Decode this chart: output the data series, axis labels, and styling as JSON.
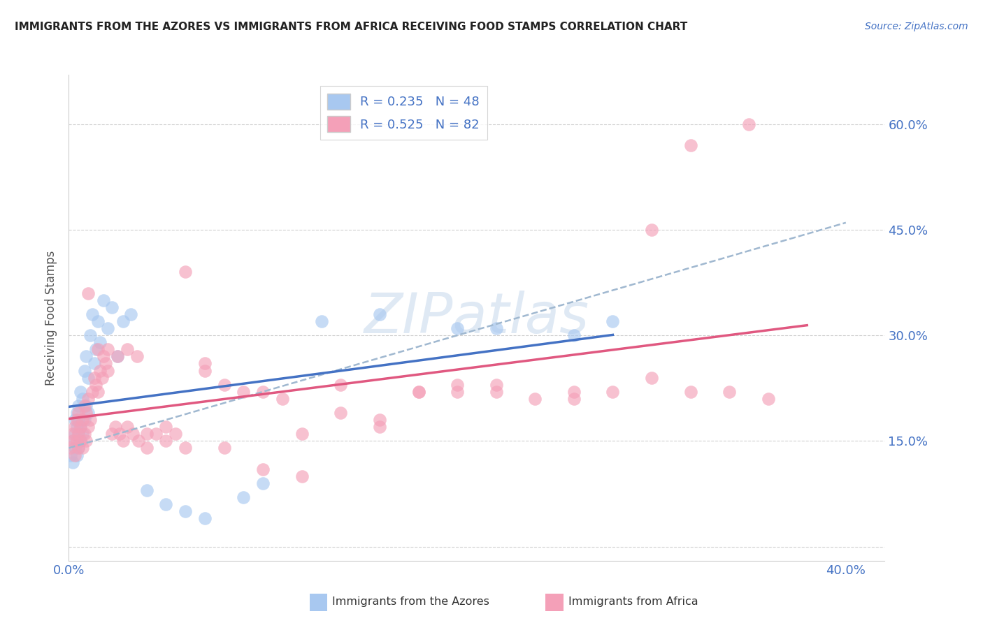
{
  "title": "IMMIGRANTS FROM THE AZORES VS IMMIGRANTS FROM AFRICA RECEIVING FOOD STAMPS CORRELATION CHART",
  "source": "Source: ZipAtlas.com",
  "ylabel": "Receiving Food Stamps",
  "xlim": [
    0.0,
    0.42
  ],
  "ylim": [
    -0.02,
    0.67
  ],
  "ytick_positions": [
    0.0,
    0.15,
    0.3,
    0.45,
    0.6
  ],
  "ytick_labels": [
    "",
    "15.0%",
    "30.0%",
    "45.0%",
    "60.0%"
  ],
  "xtick_positions": [
    0.0,
    0.4
  ],
  "xtick_labels": [
    "0.0%",
    "40.0%"
  ],
  "grid_color": "#d0d0d0",
  "background_color": "#ffffff",
  "watermark": "ZIPatlas",
  "legend_label_azores": "R = 0.235   N = 48",
  "legend_label_africa": "R = 0.525   N = 82",
  "azores_color": "#a8c8f0",
  "africa_color": "#f4a0b8",
  "azores_line_color": "#4472c4",
  "africa_line_color": "#e05880",
  "dashed_line_color": "#a0b8d0",
  "bottom_legend_azores": "Immigrants from the Azores",
  "bottom_legend_africa": "Immigrants from Africa",
  "az_x": [
    0.001,
    0.002,
    0.002,
    0.003,
    0.003,
    0.003,
    0.004,
    0.004,
    0.004,
    0.005,
    0.005,
    0.005,
    0.005,
    0.006,
    0.006,
    0.006,
    0.007,
    0.007,
    0.008,
    0.008,
    0.009,
    0.009,
    0.01,
    0.01,
    0.011,
    0.012,
    0.013,
    0.014,
    0.015,
    0.016,
    0.018,
    0.02,
    0.022,
    0.025,
    0.028,
    0.032,
    0.04,
    0.05,
    0.06,
    0.07,
    0.09,
    0.1,
    0.13,
    0.16,
    0.2,
    0.22,
    0.26,
    0.28
  ],
  "az_y": [
    0.13,
    0.12,
    0.15,
    0.14,
    0.16,
    0.18,
    0.13,
    0.17,
    0.19,
    0.14,
    0.16,
    0.18,
    0.2,
    0.15,
    0.17,
    0.22,
    0.16,
    0.21,
    0.18,
    0.25,
    0.2,
    0.27,
    0.19,
    0.24,
    0.3,
    0.33,
    0.26,
    0.28,
    0.32,
    0.29,
    0.35,
    0.31,
    0.34,
    0.27,
    0.32,
    0.33,
    0.08,
    0.06,
    0.05,
    0.04,
    0.07,
    0.09,
    0.32,
    0.33,
    0.31,
    0.31,
    0.3,
    0.32
  ],
  "af_x": [
    0.001,
    0.002,
    0.002,
    0.003,
    0.003,
    0.004,
    0.004,
    0.005,
    0.005,
    0.005,
    0.006,
    0.006,
    0.007,
    0.007,
    0.008,
    0.008,
    0.009,
    0.009,
    0.01,
    0.01,
    0.011,
    0.012,
    0.013,
    0.014,
    0.015,
    0.016,
    0.017,
    0.018,
    0.019,
    0.02,
    0.022,
    0.024,
    0.026,
    0.028,
    0.03,
    0.033,
    0.036,
    0.04,
    0.045,
    0.05,
    0.055,
    0.06,
    0.07,
    0.08,
    0.09,
    0.1,
    0.11,
    0.12,
    0.14,
    0.16,
    0.18,
    0.2,
    0.22,
    0.24,
    0.26,
    0.28,
    0.3,
    0.32,
    0.34,
    0.36,
    0.01,
    0.015,
    0.02,
    0.025,
    0.03,
    0.035,
    0.04,
    0.05,
    0.06,
    0.07,
    0.08,
    0.1,
    0.12,
    0.14,
    0.16,
    0.18,
    0.2,
    0.22,
    0.26,
    0.3,
    0.32,
    0.35
  ],
  "af_y": [
    0.14,
    0.15,
    0.16,
    0.17,
    0.13,
    0.15,
    0.18,
    0.14,
    0.16,
    0.19,
    0.15,
    0.17,
    0.14,
    0.18,
    0.16,
    0.2,
    0.15,
    0.19,
    0.17,
    0.21,
    0.18,
    0.22,
    0.24,
    0.23,
    0.22,
    0.25,
    0.24,
    0.27,
    0.26,
    0.25,
    0.16,
    0.17,
    0.16,
    0.15,
    0.17,
    0.16,
    0.15,
    0.14,
    0.16,
    0.17,
    0.16,
    0.39,
    0.26,
    0.23,
    0.22,
    0.22,
    0.21,
    0.16,
    0.19,
    0.18,
    0.22,
    0.22,
    0.23,
    0.21,
    0.21,
    0.22,
    0.24,
    0.22,
    0.22,
    0.21,
    0.36,
    0.28,
    0.28,
    0.27,
    0.28,
    0.27,
    0.16,
    0.15,
    0.14,
    0.25,
    0.14,
    0.11,
    0.1,
    0.23,
    0.17,
    0.22,
    0.23,
    0.22,
    0.22,
    0.45,
    0.57,
    0.6
  ]
}
